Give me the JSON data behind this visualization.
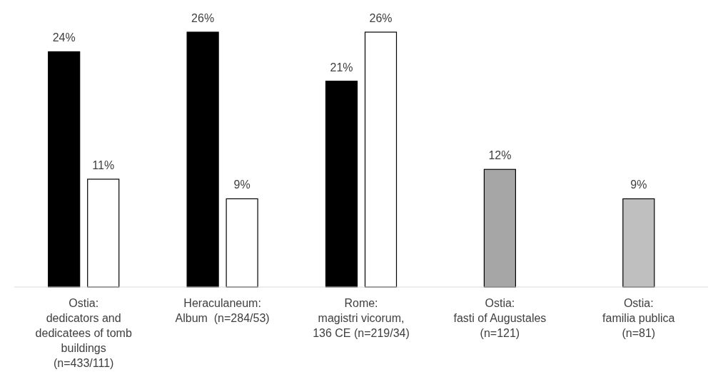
{
  "chart_data": {
    "type": "bar",
    "categories": [
      "Ostia:\ndedicators and\ndedicatees of tomb\nbuildings\n(n=433/111)",
      "Heraculaneum:\nAlbum  (n=284/53)",
      "Rome:\nmagistri vicorum,\n136 CE (n=219/34)",
      "Ostia:\nfasti of Augustales\n(n=121)",
      "Ostia:\nfamilia publica\n(n=81)"
    ],
    "series": [
      {
        "values": [
          24,
          26,
          21,
          12,
          9
        ],
        "colors": [
          "#000000",
          "#000000",
          "#000000",
          "#a6a6a6",
          "#bfbfbf"
        ],
        "value_labels": [
          "24%",
          "26%",
          "21%",
          "12%",
          "9%"
        ]
      },
      {
        "values": [
          11,
          9,
          26,
          null,
          null
        ],
        "color": "#ffffff",
        "value_labels": [
          "11%",
          "9%",
          "26%",
          null,
          null
        ]
      }
    ],
    "ylim": [
      0,
      26
    ]
  }
}
